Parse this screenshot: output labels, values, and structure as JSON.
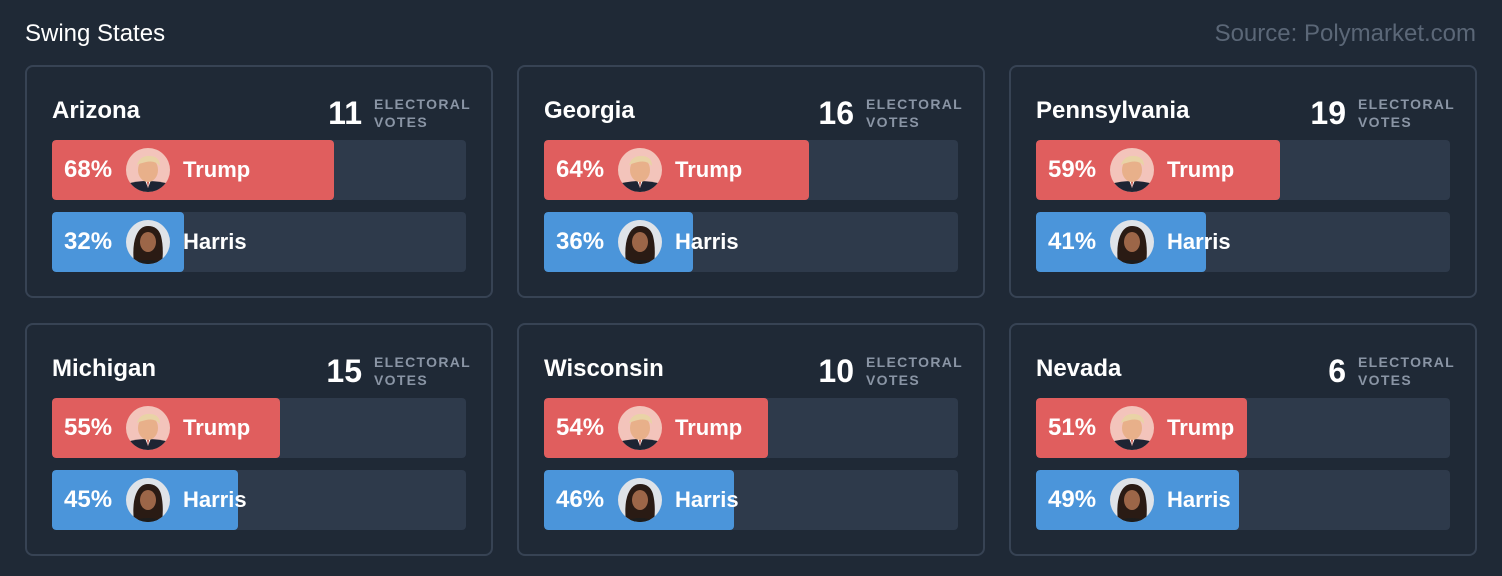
{
  "header": {
    "title": "Swing States",
    "source": "Source: Polymarket.com"
  },
  "ev_label": "ELECTORAL VOTES",
  "candidates": {
    "trump": "Trump",
    "harris": "Harris"
  },
  "colors": {
    "trump": "#e05e5e",
    "harris": "#4b95da",
    "track": "#2e3a4b",
    "background": "#1f2936"
  },
  "states": [
    {
      "name": "Arizona",
      "ev": "11",
      "trump_pct": "68%",
      "harris_pct": "32%",
      "trump": 68,
      "harris": 32
    },
    {
      "name": "Georgia",
      "ev": "16",
      "trump_pct": "64%",
      "harris_pct": "36%",
      "trump": 64,
      "harris": 36
    },
    {
      "name": "Pennsylvania",
      "ev": "19",
      "trump_pct": "59%",
      "harris_pct": "41%",
      "trump": 59,
      "harris": 41
    },
    {
      "name": "Michigan",
      "ev": "15",
      "trump_pct": "55%",
      "harris_pct": "45%",
      "trump": 55,
      "harris": 45
    },
    {
      "name": "Wisconsin",
      "ev": "10",
      "trump_pct": "54%",
      "harris_pct": "46%",
      "trump": 54,
      "harris": 46
    },
    {
      "name": "Nevada",
      "ev": "6",
      "trump_pct": "51%",
      "harris_pct": "49%",
      "trump": 51,
      "harris": 49
    }
  ]
}
